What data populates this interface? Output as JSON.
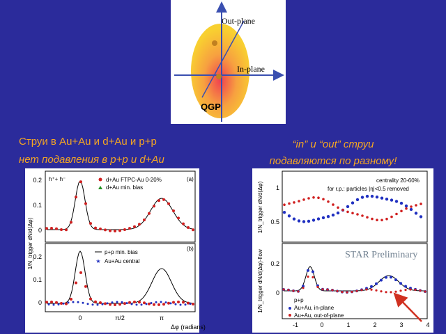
{
  "diagram": {
    "out_plane": "Out-plane",
    "in_plane": "In-plane",
    "qgp": "QGP"
  },
  "left_text": [
    "Струи в Au+Au и d+Au  и p+p",
    "нет подавления в p+p и d+Au"
  ],
  "right_text": [
    "“in” и “out” струи",
    "подавляются по разному!"
  ],
  "left_plot": {
    "y_label": "1/N_trigger dN/d(Δφ)",
    "x_label": "Δφ (radians)",
    "xticks": [
      "0",
      "π/2",
      "π"
    ],
    "panel_a": {
      "tag": "(a)",
      "particles": "h⁺+ h⁻",
      "legend": [
        "d+Au FTPC-Au 0-20%",
        "d+Au min. bias"
      ],
      "yticks": [
        "0.2",
        "0.1",
        "0"
      ]
    },
    "panel_b": {
      "tag": "(b)",
      "legend": [
        "p+p min. bias",
        "Au+Au central"
      ],
      "yticks": [
        "0.2",
        "0.1",
        "0"
      ]
    }
  },
  "right_plot": {
    "top": {
      "y_label": "1/N_trigger dN/d(Δφ)",
      "centrality": "centrality 20-60%",
      "note": "for r.p.: particles |η|<0.5 removed",
      "yticks": [
        "1",
        "0.5"
      ]
    },
    "bottom": {
      "y_label": "1/N_trigger dN/d(Δφ)-flow",
      "star": "STAR Preliminary",
      "legend": [
        "p+p",
        "Au+Au, in-plane",
        "Au+Au, out-of-plane"
      ],
      "yticks": [
        "0.2",
        "0"
      ]
    },
    "xticks": [
      "-1",
      "0",
      "1",
      "2",
      "3",
      "4"
    ]
  }
}
